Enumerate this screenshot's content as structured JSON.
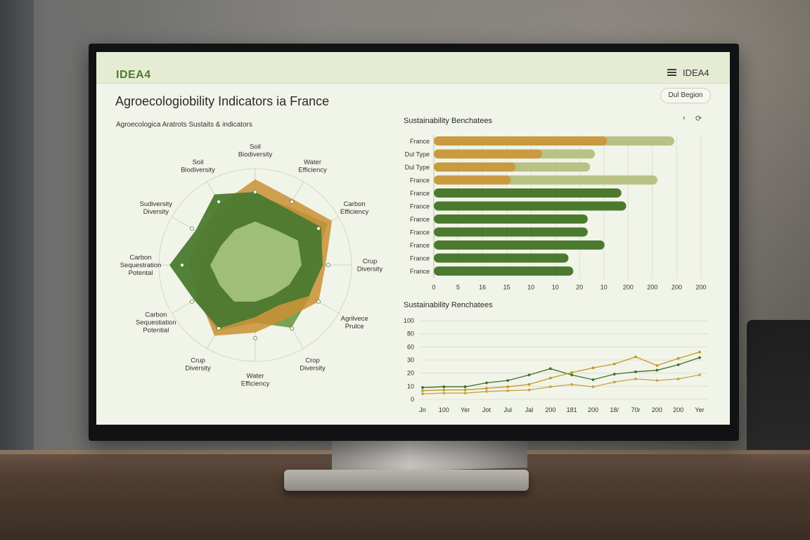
{
  "header": {
    "logo": "IDEA4",
    "brand_right": "IDEA4"
  },
  "page": {
    "title": "Agroecologiobility Indicators ia France",
    "region_button": "Dul Begion"
  },
  "radar": {
    "subtitle": "Agroecologica Aratrots Sustaits & indicators",
    "axes": [
      {
        "lines": [
          "Soil",
          "Biodiversity"
        ]
      },
      {
        "lines": [
          "Water",
          "Efficiency"
        ]
      },
      {
        "lines": [
          "Carbon",
          "Efficiency"
        ]
      },
      {
        "lines": [
          "Crup",
          "Diversity"
        ]
      },
      {
        "lines": [
          "Agrilvece",
          "Prulce"
        ]
      },
      {
        "lines": [
          "Crop",
          "Diversity"
        ]
      },
      {
        "lines": [
          "Water",
          "Efficiency"
        ]
      },
      {
        "lines": [
          "Crup",
          "Diversity"
        ]
      },
      {
        "lines": [
          "Carbon",
          "Sequestiation",
          "Potential"
        ]
      },
      {
        "lines": [
          "Carbon",
          "Sequestration",
          "Potental"
        ]
      },
      {
        "lines": [
          "Sudiversity",
          "Diversity"
        ]
      },
      {
        "lines": [
          "Soil",
          "Biodiversity"
        ]
      }
    ],
    "colors": {
      "light": "#9fbe78",
      "mid": "#4b7a2f",
      "olive": "#6d9a45",
      "orange": "#c98f35",
      "khaki": "#b3b160"
    }
  },
  "bars": {
    "title": "Sustainability Benchatees",
    "rows": [
      {
        "label": "France",
        "value": 72,
        "total": 100,
        "kind": "split"
      },
      {
        "label": "Dul Type",
        "value": 45,
        "total": 67,
        "kind": "split"
      },
      {
        "label": "Dul Type",
        "value": 34,
        "total": 65,
        "kind": "split"
      },
      {
        "label": "France",
        "value": 32,
        "total": 93,
        "kind": "split"
      },
      {
        "label": "France",
        "value": 78,
        "kind": "solid"
      },
      {
        "label": "France",
        "value": 80,
        "kind": "solid"
      },
      {
        "label": "France",
        "value": 64,
        "kind": "solid"
      },
      {
        "label": "France",
        "value": 64,
        "kind": "solid"
      },
      {
        "label": "France",
        "value": 71,
        "kind": "solid"
      },
      {
        "label": "France",
        "value": 56,
        "kind": "solid"
      },
      {
        "label": "France",
        "value": 58,
        "kind": "solid"
      }
    ],
    "ticks": [
      "0",
      "5",
      "16",
      "15",
      "10",
      "10",
      "20",
      "10",
      "200",
      "200",
      "200",
      "200"
    ],
    "colors": {
      "orange": "#c99a3f",
      "khaki": "#b8c285",
      "green": "#4b7a2f"
    }
  },
  "line": {
    "title": "Sustainability Renchatees",
    "yticks": [
      "100",
      "80",
      "60",
      "30",
      "20",
      "10",
      "0"
    ],
    "xticks": [
      "Jn",
      "100",
      "Yer",
      "Jot",
      "Jul",
      "Jal",
      "200",
      "181",
      "200",
      "18/",
      "70r",
      "200",
      "200",
      "Yer"
    ],
    "series": [
      {
        "color": "#3f6e2a",
        "values": [
          15,
          16,
          16,
          21,
          24,
          31,
          39,
          31,
          25,
          32,
          35,
          37,
          44,
          53
        ]
      },
      {
        "color": "#c9961f",
        "values": [
          11,
          12,
          12,
          14,
          16,
          19,
          27,
          34,
          40,
          45,
          54,
          43,
          52,
          60
        ]
      },
      {
        "color": "#c9a24a",
        "values": [
          7,
          8,
          8,
          10,
          11,
          12,
          16,
          19,
          16,
          22,
          26,
          24,
          26,
          31
        ]
      }
    ]
  },
  "chart_data": [
    {
      "type": "bar",
      "title": "Sustainability Benchatees",
      "categories": [
        "France",
        "Dul Type",
        "Dul Type",
        "France",
        "France",
        "France",
        "France",
        "France",
        "France",
        "France",
        "France"
      ],
      "values": [
        72,
        45,
        34,
        32,
        78,
        80,
        64,
        64,
        71,
        56,
        58
      ]
    },
    {
      "type": "line",
      "title": "Sustainability Renchatees",
      "x": [
        "Jn",
        "100",
        "Yer",
        "Jot",
        "Jul",
        "Jal",
        "200",
        "181",
        "200",
        "18/",
        "70r",
        "200",
        "200",
        "Yer"
      ],
      "series": [
        {
          "values": [
            15,
            16,
            16,
            21,
            24,
            31,
            39,
            31,
            25,
            32,
            35,
            37,
            44,
            53
          ]
        },
        {
          "values": [
            11,
            12,
            12,
            14,
            16,
            19,
            27,
            34,
            40,
            45,
            54,
            43,
            52,
            60
          ]
        },
        {
          "values": [
            7,
            8,
            8,
            10,
            11,
            12,
            16,
            19,
            16,
            22,
            26,
            24,
            26,
            31
          ]
        }
      ]
    }
  ]
}
